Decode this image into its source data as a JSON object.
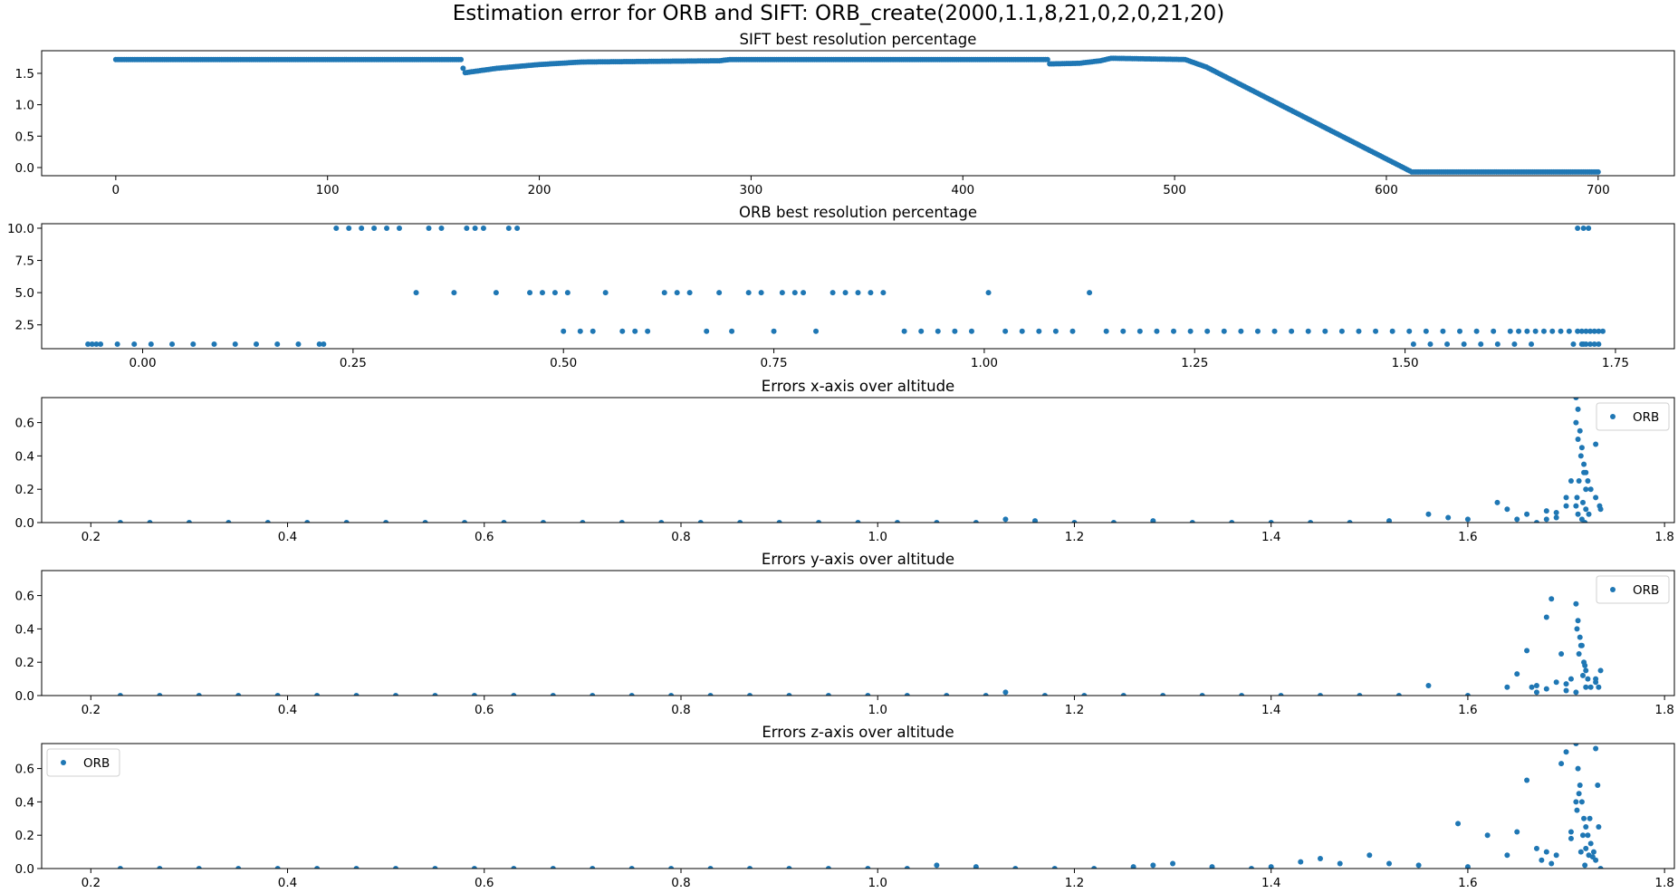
{
  "figure": {
    "title": "Estimation error for ORB and SIFT: ORB_create(2000,1.1,8,21,0,2,0,21,20)"
  },
  "colors": {
    "marker": "#1f77b4",
    "axes": "#000000",
    "background": "#ffffff"
  },
  "chart_data": [
    {
      "type": "scatter",
      "title": "SIFT best resolution percentage",
      "xlim": [
        -35,
        736
      ],
      "ylim": [
        -0.13,
        1.86
      ],
      "xticks": [
        0,
        100,
        200,
        300,
        400,
        500,
        600,
        700
      ],
      "yticks": [
        0.0,
        0.5,
        1.0,
        1.5
      ],
      "grid": false,
      "legend": null,
      "series": [
        {
          "kind": "piecewise",
          "x_range": [
            0,
            700
          ],
          "x_step": 1,
          "points": [
            [
              0,
              1.72
            ],
            [
              163,
              1.72
            ],
            [
              164,
              1.58
            ],
            [
              165,
              1.51
            ],
            [
              180,
              1.58
            ],
            [
              200,
              1.64
            ],
            [
              220,
              1.68
            ],
            [
              285,
              1.7
            ],
            [
              290,
              1.72
            ],
            [
              300,
              1.72
            ],
            [
              440,
              1.72
            ],
            [
              441,
              1.65
            ],
            [
              455,
              1.66
            ],
            [
              465,
              1.7
            ],
            [
              470,
              1.74
            ],
            [
              505,
              1.72
            ],
            [
              515,
              1.6
            ],
            [
              612,
              -0.07
            ],
            [
              700,
              -0.07
            ]
          ]
        }
      ]
    },
    {
      "type": "scatter",
      "title": "ORB best resolution percentage",
      "xlim": [
        -0.12,
        1.82
      ],
      "ylim": [
        0.65,
        10.35
      ],
      "xticks": [
        0.0,
        0.25,
        0.5,
        0.75,
        1.0,
        1.25,
        1.5,
        1.75
      ],
      "yticks": [
        2.5,
        5.0,
        7.5,
        10.0
      ],
      "grid": false,
      "legend": null,
      "series": [
        {
          "x": [
            -0.065,
            -0.06,
            -0.055,
            -0.05,
            -0.03,
            -0.01,
            0.01,
            0.035,
            0.06,
            0.085,
            0.11,
            0.135,
            0.16,
            0.185,
            0.21,
            0.215,
            0.23,
            0.245,
            0.26,
            0.275,
            0.29,
            0.305,
            0.325,
            0.34,
            0.355,
            0.37,
            0.385,
            0.395,
            0.405,
            0.42,
            0.435,
            0.445,
            0.46,
            0.475,
            0.49,
            0.5,
            0.505,
            0.52,
            0.535,
            0.55,
            0.57,
            0.585,
            0.6,
            0.62,
            0.635,
            0.65,
            0.67,
            0.685,
            0.7,
            0.72,
            0.735,
            0.75,
            0.76,
            0.775,
            0.785,
            0.8,
            0.82,
            0.835,
            0.85,
            0.865,
            0.88,
            0.905,
            0.925,
            0.945,
            0.965,
            0.985,
            1.005,
            1.025,
            1.045,
            1.065,
            1.085,
            1.105,
            1.125,
            1.145,
            1.165,
            1.185,
            1.205,
            1.225,
            1.245,
            1.265,
            1.285,
            1.305,
            1.325,
            1.345,
            1.365,
            1.385,
            1.405,
            1.425,
            1.445,
            1.465,
            1.485,
            1.505,
            1.525,
            1.545,
            1.565,
            1.585,
            1.605,
            1.625,
            1.635,
            1.645,
            1.655,
            1.665,
            1.675,
            1.685,
            1.695,
            1.705,
            1.71,
            1.715,
            1.72,
            1.725,
            1.73,
            1.735,
            1.51,
            1.53,
            1.55,
            1.57,
            1.59,
            1.61,
            1.63,
            1.65,
            1.7,
            1.71,
            1.712,
            1.715,
            1.72,
            1.725,
            1.73,
            1.705,
            1.712,
            1.718
          ],
          "y": [
            1,
            1,
            1,
            1,
            1,
            1,
            1,
            1,
            1,
            1,
            1,
            1,
            1,
            1,
            1,
            1,
            10,
            10,
            10,
            10,
            10,
            10,
            5,
            10,
            10,
            5,
            10,
            10,
            10,
            5,
            10,
            10,
            5,
            5,
            5,
            2,
            5,
            2,
            2,
            5,
            2,
            2,
            2,
            5,
            5,
            5,
            2,
            5,
            2,
            5,
            5,
            2,
            5,
            5,
            5,
            2,
            5,
            5,
            5,
            5,
            5,
            2,
            2,
            2,
            2,
            2,
            5,
            2,
            2,
            2,
            2,
            2,
            5,
            2,
            2,
            2,
            2,
            2,
            2,
            2,
            2,
            2,
            2,
            2,
            2,
            2,
            2,
            2,
            2,
            2,
            2,
            2,
            2,
            2,
            2,
            2,
            2,
            2,
            2,
            2,
            2,
            2,
            2,
            2,
            2,
            2,
            2,
            2,
            2,
            2,
            2,
            2,
            1,
            1,
            1,
            1,
            1,
            1,
            1,
            1,
            1,
            1,
            1,
            1,
            1,
            1,
            1,
            10,
            10,
            10
          ]
        }
      ]
    },
    {
      "type": "scatter",
      "title": "Errors x-axis over altitude",
      "xlim": [
        0.15,
        1.81
      ],
      "ylim": [
        0.0,
        0.75
      ],
      "xticks": [
        0.2,
        0.4,
        0.6,
        0.8,
        1.0,
        1.2,
        1.4,
        1.6,
        1.8
      ],
      "yticks": [
        0.0,
        0.2,
        0.4,
        0.6
      ],
      "grid": false,
      "legend": "upper-right",
      "series": [
        {
          "name": "ORB",
          "x": [
            0.23,
            0.26,
            0.3,
            0.34,
            0.38,
            0.42,
            0.46,
            0.5,
            0.54,
            0.58,
            0.62,
            0.66,
            0.7,
            0.74,
            0.78,
            0.82,
            0.86,
            0.9,
            0.94,
            0.98,
            1.02,
            1.06,
            1.1,
            1.13,
            1.16,
            1.2,
            1.24,
            1.28,
            1.32,
            1.36,
            1.4,
            1.44,
            1.48,
            1.52,
            1.56,
            1.58,
            1.6,
            1.63,
            1.64,
            1.65,
            1.66,
            1.67,
            1.68,
            1.69,
            1.7,
            1.705,
            1.71,
            1.712,
            1.714,
            1.716,
            1.718,
            1.72,
            1.722,
            1.725,
            1.73,
            1.735,
            1.71,
            1.712,
            1.715,
            1.718,
            1.72,
            1.71,
            1.712,
            1.716,
            1.719,
            1.711,
            1.713,
            1.717,
            1.72,
            1.723,
            1.7,
            1.69,
            1.68,
            1.73,
            1.734
          ],
          "y": [
            0.0,
            0.0,
            0.0,
            0.0,
            0.0,
            0.0,
            0.0,
            0.0,
            0.0,
            0.0,
            0.0,
            0.0,
            0.0,
            0.0,
            0.0,
            0.0,
            0.0,
            0.0,
            0.0,
            0.0,
            0.0,
            0.0,
            0.0,
            0.02,
            0.01,
            0.0,
            0.0,
            0.01,
            0.0,
            0.0,
            0.0,
            0.0,
            0.0,
            0.01,
            0.05,
            0.03,
            0.02,
            0.12,
            0.08,
            0.02,
            0.05,
            0.0,
            0.07,
            0.03,
            0.15,
            0.25,
            0.75,
            0.68,
            0.55,
            0.45,
            0.35,
            0.3,
            0.25,
            0.2,
            0.15,
            0.08,
            0.6,
            0.5,
            0.4,
            0.3,
            0.2,
            0.1,
            0.05,
            0.02,
            0.0,
            0.15,
            0.25,
            0.12,
            0.08,
            0.05,
            0.1,
            0.06,
            0.02,
            0.47,
            0.1
          ]
        }
      ]
    },
    {
      "type": "scatter",
      "title": "Errors y-axis over altitude",
      "xlim": [
        0.15,
        1.81
      ],
      "ylim": [
        0.0,
        0.75
      ],
      "xticks": [
        0.2,
        0.4,
        0.6,
        0.8,
        1.0,
        1.2,
        1.4,
        1.6,
        1.8
      ],
      "yticks": [
        0.0,
        0.2,
        0.4,
        0.6
      ],
      "grid": false,
      "legend": "upper-right",
      "series": [
        {
          "name": "ORB",
          "x": [
            0.23,
            0.27,
            0.31,
            0.35,
            0.39,
            0.43,
            0.47,
            0.51,
            0.55,
            0.59,
            0.63,
            0.67,
            0.71,
            0.75,
            0.79,
            0.83,
            0.87,
            0.91,
            0.95,
            0.99,
            1.03,
            1.07,
            1.11,
            1.13,
            1.17,
            1.21,
            1.25,
            1.29,
            1.33,
            1.37,
            1.41,
            1.45,
            1.49,
            1.53,
            1.56,
            1.6,
            1.64,
            1.65,
            1.66,
            1.665,
            1.67,
            1.68,
            1.685,
            1.69,
            1.695,
            1.7,
            1.705,
            1.71,
            1.712,
            1.714,
            1.716,
            1.718,
            1.72,
            1.722,
            1.725,
            1.73,
            1.735,
            1.711,
            1.713,
            1.717,
            1.72,
            1.71,
            1.715,
            1.719,
            1.7,
            1.68,
            1.67,
            1.73,
            1.733
          ],
          "y": [
            0.0,
            0.0,
            0.0,
            0.0,
            0.0,
            0.0,
            0.0,
            0.0,
            0.0,
            0.0,
            0.0,
            0.0,
            0.0,
            0.0,
            0.0,
            0.0,
            0.0,
            0.0,
            0.0,
            0.0,
            0.0,
            0.0,
            0.0,
            0.02,
            0.0,
            0.0,
            0.0,
            0.0,
            0.0,
            0.0,
            0.0,
            0.0,
            0.0,
            0.0,
            0.06,
            0.0,
            0.05,
            0.13,
            0.27,
            0.05,
            0.06,
            0.47,
            0.58,
            0.08,
            0.25,
            0.03,
            0.1,
            0.55,
            0.45,
            0.35,
            0.3,
            0.2,
            0.15,
            0.1,
            0.05,
            0.08,
            0.15,
            0.4,
            0.25,
            0.12,
            0.05,
            0.02,
            0.3,
            0.18,
            0.07,
            0.04,
            0.02,
            0.1,
            0.05
          ]
        }
      ]
    },
    {
      "type": "scatter",
      "title": "Errors z-axis over altitude",
      "xlim": [
        0.15,
        1.81
      ],
      "ylim": [
        0.0,
        0.75
      ],
      "xticks": [
        0.2,
        0.4,
        0.6,
        0.8,
        1.0,
        1.2,
        1.4,
        1.6,
        1.8
      ],
      "yticks": [
        0.0,
        0.2,
        0.4,
        0.6
      ],
      "grid": false,
      "legend": "upper-left",
      "series": [
        {
          "name": "ORB",
          "x": [
            0.23,
            0.27,
            0.31,
            0.35,
            0.39,
            0.43,
            0.47,
            0.51,
            0.55,
            0.59,
            0.63,
            0.67,
            0.71,
            0.75,
            0.79,
            0.83,
            0.87,
            0.91,
            0.95,
            0.99,
            1.03,
            1.06,
            1.1,
            1.14,
            1.18,
            1.22,
            1.26,
            1.28,
            1.3,
            1.34,
            1.38,
            1.4,
            1.43,
            1.45,
            1.47,
            1.5,
            1.52,
            1.55,
            1.59,
            1.6,
            1.62,
            1.64,
            1.65,
            1.66,
            1.67,
            1.68,
            1.69,
            1.7,
            1.705,
            1.71,
            1.712,
            1.714,
            1.716,
            1.718,
            1.72,
            1.722,
            1.725,
            1.728,
            1.73,
            1.735,
            1.711,
            1.713,
            1.717,
            1.72,
            1.723,
            1.73,
            1.732,
            1.675,
            1.685,
            1.695,
            1.705,
            1.71,
            1.715,
            1.719,
            1.724,
            1.727,
            1.733
          ],
          "y": [
            0.0,
            0.0,
            0.0,
            0.0,
            0.0,
            0.0,
            0.0,
            0.0,
            0.0,
            0.0,
            0.0,
            0.0,
            0.0,
            0.0,
            0.0,
            0.0,
            0.0,
            0.0,
            0.0,
            0.0,
            0.0,
            0.02,
            0.01,
            0.0,
            0.0,
            0.0,
            0.01,
            0.02,
            0.03,
            0.01,
            0.0,
            0.01,
            0.04,
            0.06,
            0.03,
            0.08,
            0.03,
            0.02,
            0.27,
            0.01,
            0.2,
            0.08,
            0.22,
            0.53,
            0.12,
            0.1,
            0.08,
            0.7,
            0.22,
            0.75,
            0.6,
            0.5,
            0.4,
            0.3,
            0.25,
            0.2,
            0.15,
            0.1,
            0.05,
            0.0,
            0.35,
            0.45,
            0.2,
            0.12,
            0.08,
            0.72,
            0.5,
            0.05,
            0.03,
            0.63,
            0.18,
            0.4,
            0.1,
            0.02,
            0.3,
            0.07,
            0.25
          ]
        }
      ]
    }
  ]
}
